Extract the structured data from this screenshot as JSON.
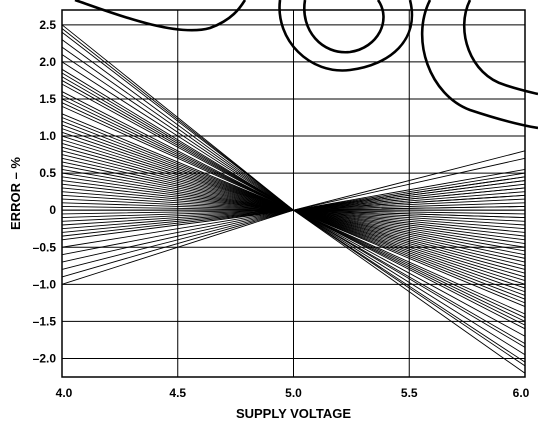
{
  "chart_data": {
    "type": "line",
    "xlabel": "SUPPLY VOLTAGE",
    "ylabel": "ERROR – %",
    "xlim": [
      4.0,
      6.0
    ],
    "ylim": [
      -2.25,
      2.7
    ],
    "x_ticks": [
      4.0,
      4.5,
      5.0,
      5.5,
      6.0
    ],
    "x_tick_labels": [
      "4.0",
      "4.5",
      "5.0",
      "5.5",
      "6.0"
    ],
    "y_ticks": [
      2.5,
      2.0,
      1.5,
      1.0,
      0.5,
      0,
      -0.5,
      -1.0,
      -1.5,
      -2.0
    ],
    "y_tick_labels": [
      "2.5",
      "2.0",
      "1.5",
      "1.0",
      "0.5",
      "0",
      "–0.5",
      "–1.0",
      "–1.5",
      "–2.0"
    ],
    "grid": true,
    "legend": "none",
    "pivot": {
      "x": 5.0,
      "y": 0
    },
    "series_endpoints": {
      "description_free": true,
      "x": [
        4.0,
        6.0
      ],
      "y_at_4": [
        2.5,
        2.45,
        2.4,
        2.3,
        2.2,
        2.1,
        2.0,
        1.9,
        1.85,
        1.8,
        1.75,
        1.7,
        1.6,
        1.55,
        1.5,
        1.45,
        1.4,
        1.3,
        1.25,
        1.2,
        1.15,
        1.1,
        1.05,
        1.0,
        0.95,
        0.9,
        0.85,
        0.8,
        0.75,
        0.7,
        0.65,
        0.6,
        0.55,
        0.5,
        0.45,
        0.4,
        0.35,
        0.3,
        0.25,
        0.2,
        0.15,
        0.1,
        0.05,
        0.0,
        -0.05,
        -0.1,
        -0.15,
        -0.2,
        -0.25,
        -0.3,
        -0.35,
        -0.4,
        -0.5,
        -0.6,
        -0.7,
        -0.8,
        -0.9,
        -1.0
      ],
      "y_at_6": [
        -2.2,
        -2.1,
        -2.05,
        -1.95,
        -1.85,
        -1.8,
        -1.7,
        -1.6,
        -1.55,
        -1.5,
        -1.45,
        -1.4,
        -1.3,
        -1.25,
        -1.2,
        -1.15,
        -1.1,
        -1.05,
        -1.0,
        -0.95,
        -0.9,
        -0.85,
        -0.8,
        -0.75,
        -0.7,
        -0.65,
        -0.6,
        -0.55,
        -0.5,
        -0.45,
        -0.4,
        -0.35,
        -0.3,
        -0.25,
        -0.2,
        -0.15,
        -0.1,
        -0.05,
        0.0,
        0.05,
        0.1,
        0.15,
        0.2,
        0.25,
        0.3,
        0.35,
        0.4,
        0.45,
        0.5,
        0.05,
        -0.1,
        0.2,
        0.3,
        0.45,
        0.55,
        0.7,
        0.8,
        0.4
      ]
    }
  }
}
